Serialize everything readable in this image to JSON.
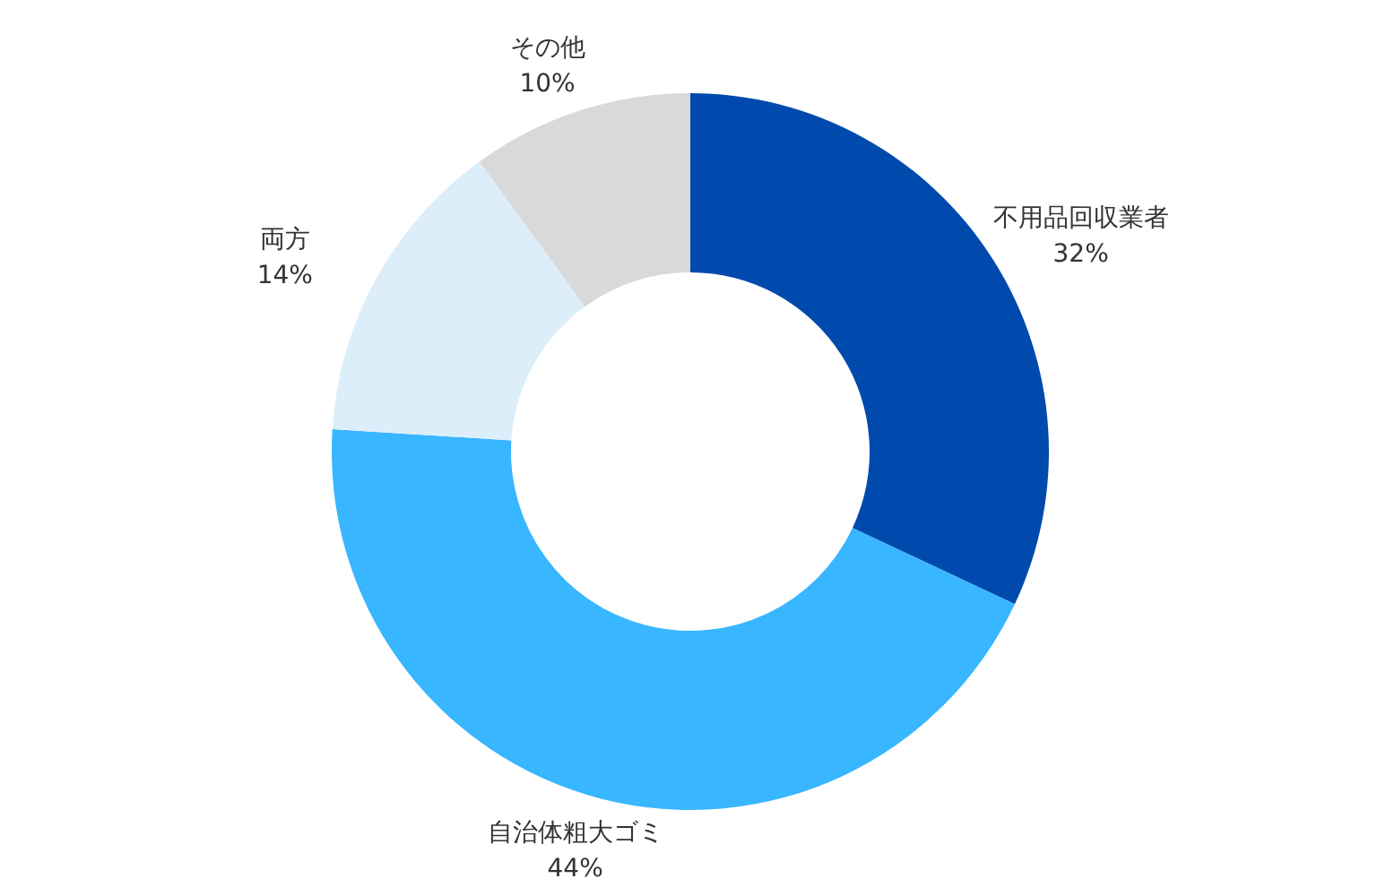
{
  "chart_data": {
    "type": "donut",
    "categories": [
      "不用品回収業者",
      "自治体粗大ゴミ",
      "両方",
      "その他"
    ],
    "values": [
      32,
      44,
      14,
      10
    ],
    "value_labels": [
      "32%",
      "44%",
      "14%",
      "10%"
    ],
    "colors": [
      "#004aad",
      "#38b6ff",
      "#dbeefa",
      "#d9d9d9"
    ]
  }
}
